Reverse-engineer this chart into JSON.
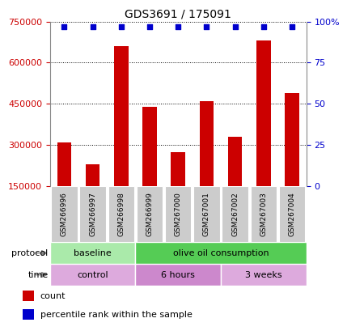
{
  "title": "GDS3691 / 175091",
  "samples": [
    "GSM266996",
    "GSM266997",
    "GSM266998",
    "GSM266999",
    "GSM267000",
    "GSM267001",
    "GSM267002",
    "GSM267003",
    "GSM267004"
  ],
  "counts": [
    310000,
    230000,
    660000,
    440000,
    275000,
    460000,
    330000,
    680000,
    490000
  ],
  "percentile_ranks": [
    97,
    97,
    97,
    97,
    97,
    97,
    97,
    97,
    97
  ],
  "ylim_left": [
    150000,
    750000
  ],
  "ylim_right": [
    0,
    100
  ],
  "yticks_left": [
    150000,
    300000,
    450000,
    600000,
    750000
  ],
  "yticks_right": [
    0,
    25,
    50,
    75,
    100
  ],
  "bar_color": "#cc0000",
  "dot_color": "#0000cc",
  "protocol_groups": [
    {
      "label": "baseline",
      "start": 0,
      "end": 3,
      "color": "#aaeaaa"
    },
    {
      "label": "olive oil consumption",
      "start": 3,
      "end": 9,
      "color": "#55cc55"
    }
  ],
  "time_groups": [
    {
      "label": "control",
      "start": 0,
      "end": 3,
      "color": "#ddaadd"
    },
    {
      "label": "6 hours",
      "start": 3,
      "end": 6,
      "color": "#cc88cc"
    },
    {
      "label": "3 weeks",
      "start": 6,
      "end": 9,
      "color": "#ddaadd"
    }
  ],
  "legend_count_label": "count",
  "legend_pct_label": "percentile rank within the sample",
  "tick_label_color": "#cc0000",
  "right_tick_color": "#0000cc",
  "bar_width": 0.5,
  "background_color": "#ffffff",
  "grid_color": "#000000",
  "sample_box_color": "#cccccc"
}
